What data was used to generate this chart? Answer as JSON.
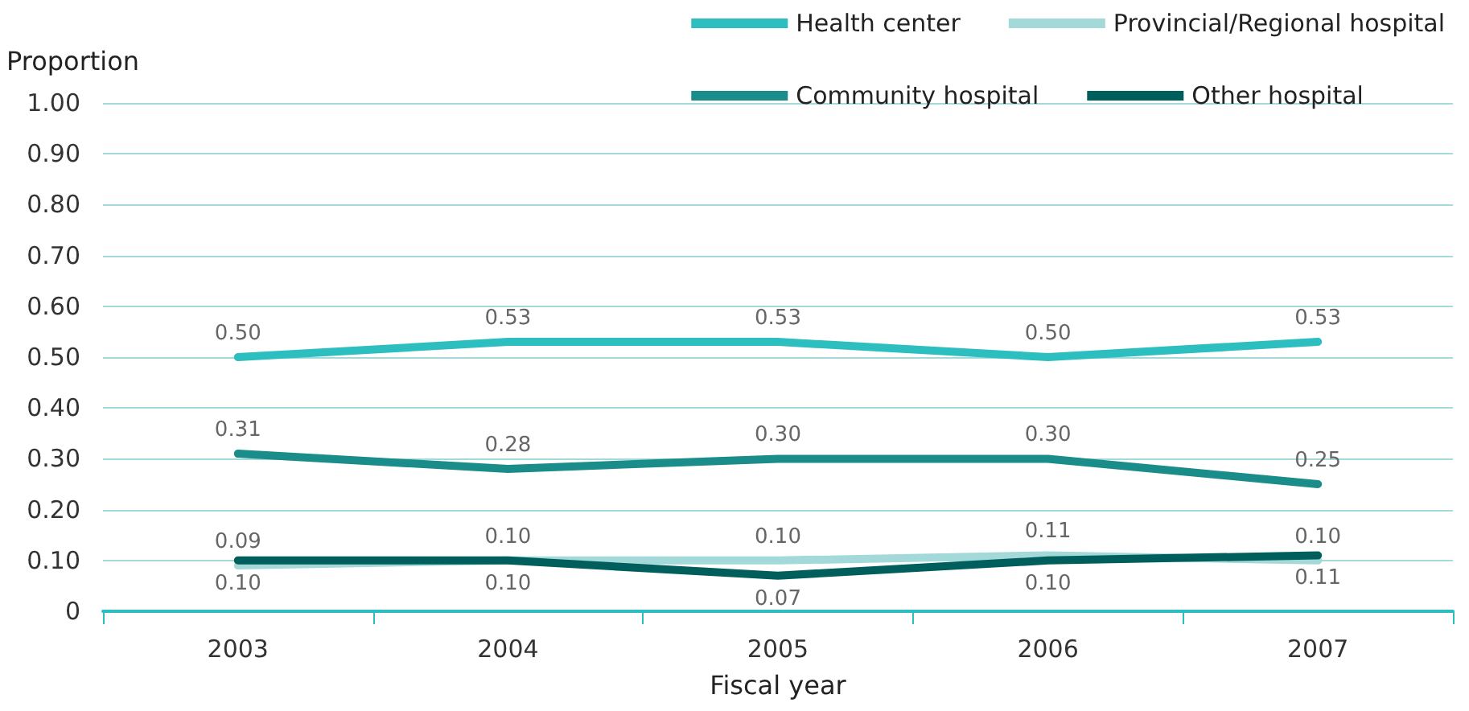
{
  "chart_data": {
    "type": "line",
    "xlabel": "Fiscal year",
    "ylabel": "Proportion",
    "categories": [
      "2003",
      "2004",
      "2005",
      "2006",
      "2007"
    ],
    "series": [
      {
        "name": "Health center",
        "color": "#2dbfbf",
        "values": [
          0.5,
          0.53,
          0.53,
          0.5,
          0.53
        ],
        "value_labels": [
          "0.50",
          "0.53",
          "0.53",
          "0.50",
          "0.53"
        ]
      },
      {
        "name": "Provincial/Regional hospital",
        "color": "#a3d9d9",
        "values": [
          0.09,
          0.1,
          0.1,
          0.11,
          0.1
        ],
        "value_labels": [
          "0.09",
          "0.10",
          "0.10",
          "0.11",
          "0.10"
        ]
      },
      {
        "name": "Community hospital",
        "color": "#1a8c8a",
        "values": [
          0.31,
          0.28,
          0.3,
          0.3,
          0.25
        ],
        "value_labels": [
          "0.31",
          "0.28",
          "0.30",
          "0.30",
          "0.25"
        ]
      },
      {
        "name": "Other hospital",
        "color": "#005f5c",
        "values": [
          0.1,
          0.1,
          0.07,
          0.1,
          0.11
        ],
        "value_labels": [
          "0.10",
          "0.10",
          "0.07",
          "0.10",
          "0.11"
        ]
      }
    ],
    "ylim": [
      0,
      1
    ],
    "yticks": [
      0,
      {
        "value": 0.1,
        "label": "0.10"
      },
      {
        "value": 0.2,
        "label": "0.20"
      },
      {
        "value": 0.3,
        "label": "0.30"
      },
      {
        "value": 0.4,
        "label": "0.40"
      },
      {
        "value": 0.5,
        "label": "0.50"
      },
      {
        "value": 0.6,
        "label": "0.60"
      },
      {
        "value": 0.7,
        "label": "0.70"
      },
      {
        "value": 0.8,
        "label": "0.80"
      },
      {
        "value": 0.9,
        "label": "0.90"
      },
      {
        "value": 1,
        "label": "1.00"
      }
    ],
    "grid": "y",
    "legend": "top right",
    "marker": "none",
    "line_style": "solid"
  }
}
